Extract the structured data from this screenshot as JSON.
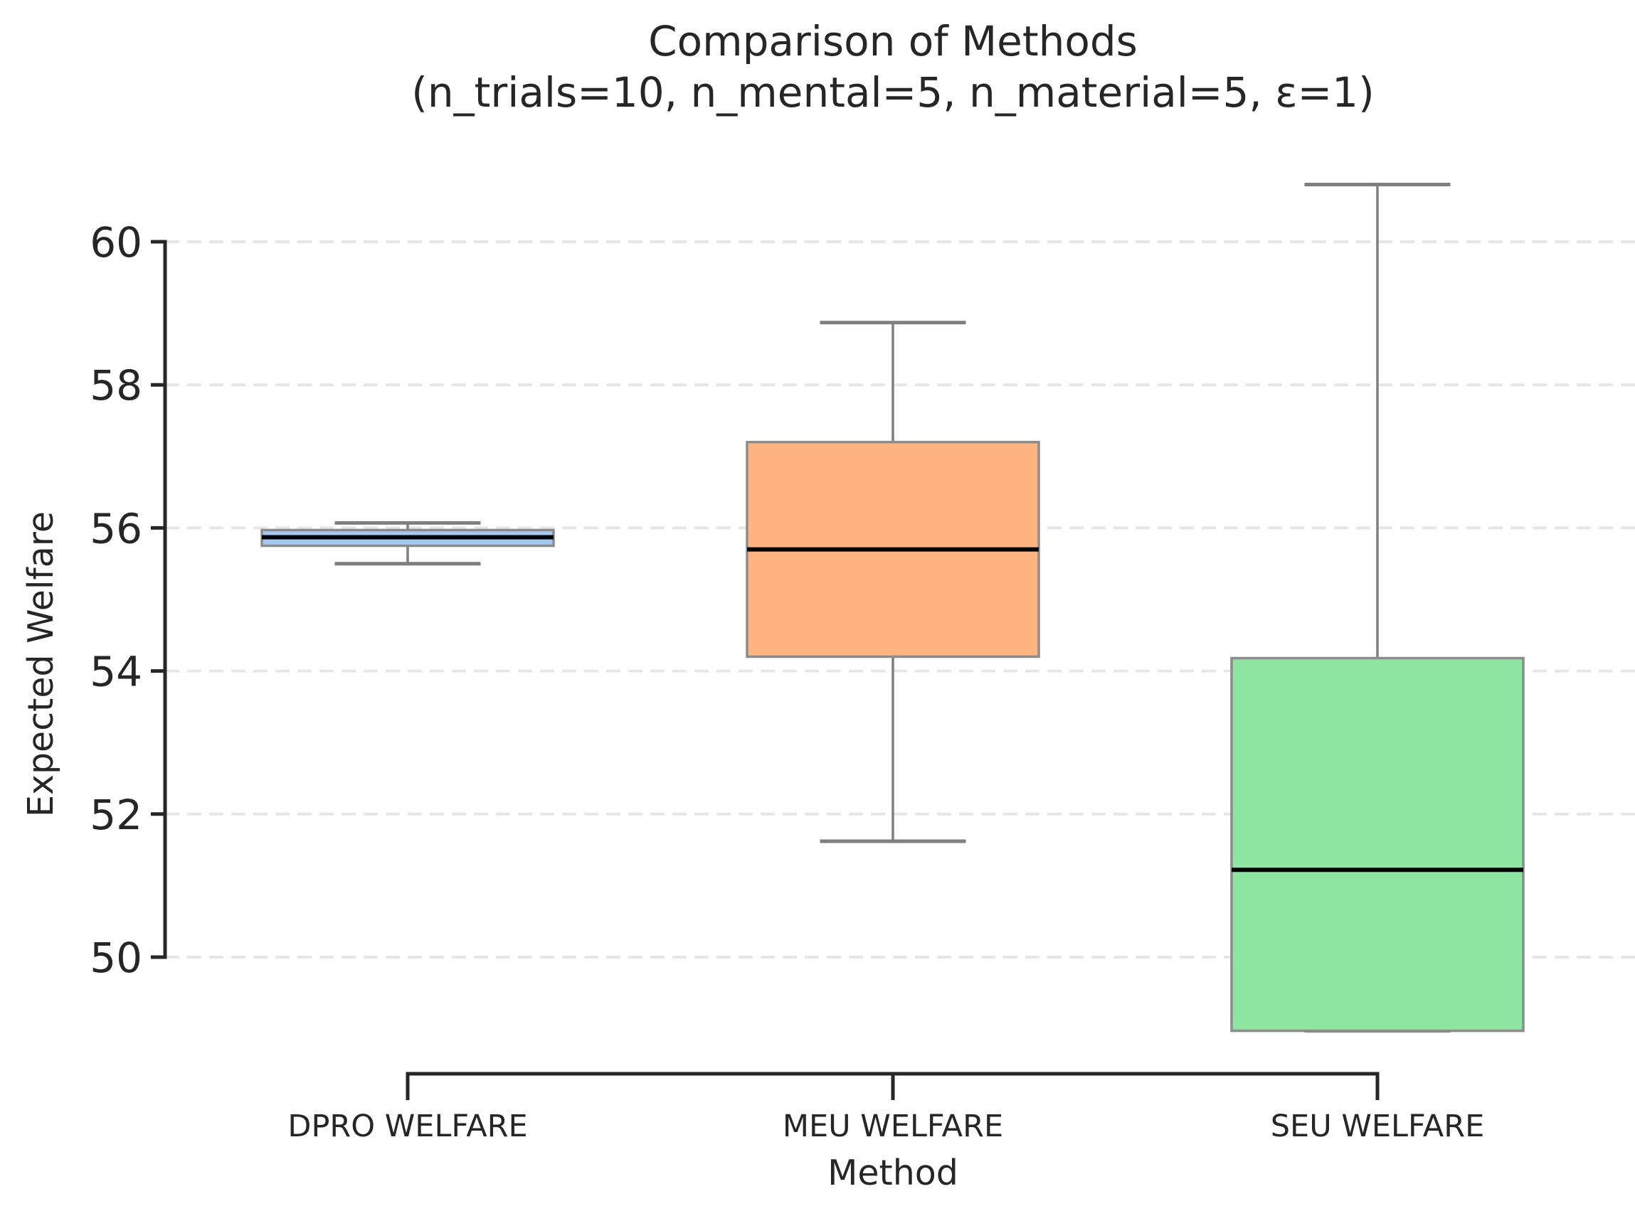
{
  "chart_data": {
    "type": "box",
    "title": "Comparison of Methods",
    "subtitle": "(n_trials=10, n_mental=5, n_material=5, ε=1)",
    "xlabel": "Method",
    "ylabel": "Expected Welfare",
    "ylim": [
      48.75,
      60.85
    ],
    "yticks": [
      50,
      52,
      54,
      56,
      58,
      60
    ],
    "grid": "y-dashed",
    "categories": [
      "DPRO WELFARE",
      "MEU WELFARE",
      "SEU WELFARE"
    ],
    "boxes": [
      {
        "category": "DPRO WELFARE",
        "whisker_low": 55.5,
        "q1": 55.75,
        "median": 55.87,
        "q3": 55.97,
        "whisker_high": 56.07,
        "color": "#a1c9f4"
      },
      {
        "category": "MEU WELFARE",
        "whisker_low": 51.62,
        "q1": 54.2,
        "median": 55.7,
        "q3": 57.2,
        "whisker_high": 58.87,
        "color": "#ffb482"
      },
      {
        "category": "SEU WELFARE",
        "whisker_low": 48.97,
        "q1": 48.97,
        "median": 51.22,
        "q3": 54.18,
        "whisker_high": 60.8,
        "color": "#8de5a1"
      }
    ]
  }
}
